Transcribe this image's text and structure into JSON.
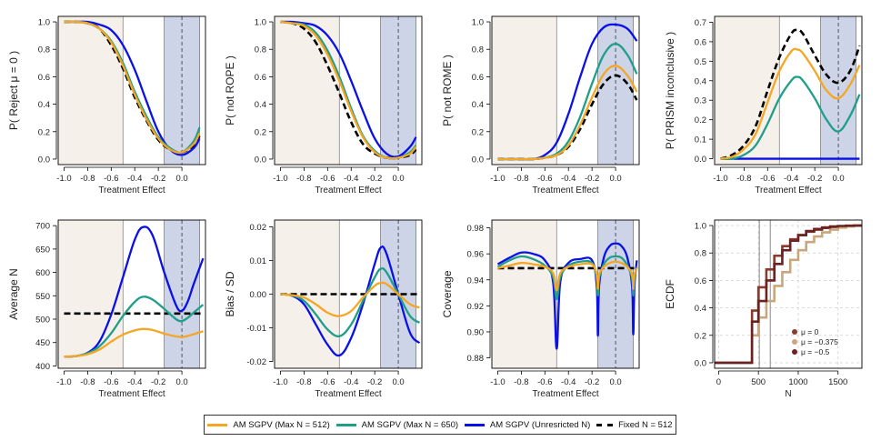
{
  "colors": {
    "am512": "#f5a623",
    "am650": "#1f9e89",
    "unres": "#0a10e8",
    "fixed": "#000000",
    "pre_region": "#f6f0ea",
    "rope_region": "#cdd4e8",
    "ecdf_mu0": "#8b3a2b",
    "ecdf_mu0375": "#c9a77c",
    "ecdf_mu05": "#6b2222"
  },
  "legend": {
    "items": [
      {
        "label": "AM SGPV (Max N = 512)",
        "color": "#f5a623",
        "style": "solid"
      },
      {
        "label": "AM SGPV (Max N = 650)",
        "color": "#1f9e89",
        "style": "solid"
      },
      {
        "label": "AM SGPV (Unresricted N)",
        "color": "#0a10e8",
        "style": "solid"
      },
      {
        "label": "Fixed N = 512",
        "color": "#000000",
        "style": "dashed"
      }
    ]
  },
  "chart_data": [
    {
      "type": "line",
      "ylabel": "P( Reject μ = 0 )",
      "xlabel": "Treatment Effect",
      "xlim": [
        -1.05,
        0.2
      ],
      "ylim": [
        -0.04,
        1.04
      ],
      "xticks": [
        "-1.0",
        "-0.8",
        "-0.6",
        "-0.4",
        "-0.2",
        "0.0"
      ],
      "yticks": [
        "0.0",
        "0.2",
        "0.4",
        "0.6",
        "0.8",
        "1.0"
      ],
      "x": [
        -1.0,
        -0.9,
        -0.8,
        -0.7,
        -0.6,
        -0.5,
        -0.4,
        -0.3,
        -0.2,
        -0.1,
        0.0,
        0.1,
        0.15
      ],
      "series": [
        {
          "name": "Fixed N = 512",
          "key": "fixed",
          "values": [
            1.0,
            1.0,
            0.99,
            0.95,
            0.83,
            0.66,
            0.45,
            0.28,
            0.14,
            0.07,
            0.05,
            0.1,
            0.17
          ]
        },
        {
          "name": "AM SGPV (Max N = 512)",
          "key": "am512",
          "values": [
            1.0,
            1.0,
            0.99,
            0.95,
            0.85,
            0.68,
            0.47,
            0.29,
            0.15,
            0.07,
            0.05,
            0.11,
            0.19
          ]
        },
        {
          "name": "AM SGPV (Max N = 650)",
          "key": "am650",
          "values": [
            1.0,
            1.0,
            0.99,
            0.95,
            0.86,
            0.7,
            0.49,
            0.31,
            0.16,
            0.08,
            0.05,
            0.13,
            0.23
          ]
        },
        {
          "name": "AM SGPV (Unresricted N)",
          "key": "unres",
          "values": [
            1.0,
            1.0,
            1.0,
            0.98,
            0.94,
            0.83,
            0.65,
            0.42,
            0.2,
            0.07,
            0.03,
            0.08,
            0.15
          ]
        }
      ]
    },
    {
      "type": "line",
      "ylabel": "P( not ROPE )",
      "xlabel": "Treatment Effect",
      "xlim": [
        -1.05,
        0.2
      ],
      "ylim": [
        -0.04,
        1.04
      ],
      "xticks": [
        "-1.0",
        "-0.8",
        "-0.6",
        "-0.4",
        "-0.2",
        "0.0"
      ],
      "yticks": [
        "0.0",
        "0.2",
        "0.4",
        "0.6",
        "0.8",
        "1.0"
      ],
      "x": [
        -1.0,
        -0.9,
        -0.8,
        -0.7,
        -0.6,
        -0.5,
        -0.4,
        -0.3,
        -0.2,
        -0.1,
        0.0,
        0.1,
        0.15
      ],
      "series": [
        {
          "name": "Fixed N = 512",
          "key": "fixed",
          "values": [
            1.0,
            0.99,
            0.95,
            0.85,
            0.68,
            0.48,
            0.27,
            0.11,
            0.04,
            0.01,
            0.01,
            0.03,
            0.07
          ]
        },
        {
          "name": "AM SGPV (Max N = 512)",
          "key": "am512",
          "values": [
            1.0,
            0.99,
            0.97,
            0.9,
            0.76,
            0.57,
            0.35,
            0.16,
            0.05,
            0.01,
            0.01,
            0.04,
            0.09
          ]
        },
        {
          "name": "AM SGPV (Max N = 650)",
          "key": "am650",
          "values": [
            1.0,
            0.99,
            0.98,
            0.92,
            0.79,
            0.6,
            0.37,
            0.17,
            0.06,
            0.01,
            0.01,
            0.05,
            0.1
          ]
        },
        {
          "name": "AM SGPV (Unresricted N)",
          "key": "unres",
          "values": [
            1.0,
            1.0,
            0.99,
            0.97,
            0.9,
            0.77,
            0.57,
            0.35,
            0.15,
            0.04,
            0.02,
            0.09,
            0.16
          ]
        }
      ]
    },
    {
      "type": "line",
      "ylabel": "P( not ROME )",
      "xlabel": "Treatment Effect",
      "xlim": [
        -1.05,
        0.2
      ],
      "ylim": [
        -0.04,
        1.04
      ],
      "xticks": [
        "-1.0",
        "-0.8",
        "-0.6",
        "-0.4",
        "-0.2",
        "0.0"
      ],
      "yticks": [
        "0.0",
        "0.2",
        "0.4",
        "0.6",
        "0.8",
        "1.0"
      ],
      "x": [
        -1.0,
        -0.9,
        -0.8,
        -0.7,
        -0.6,
        -0.5,
        -0.4,
        -0.3,
        -0.2,
        -0.1,
        0.0,
        0.1,
        0.18
      ],
      "series": [
        {
          "name": "Fixed N = 512",
          "key": "fixed",
          "values": [
            0.0,
            0.0,
            0.0,
            0.0,
            0.01,
            0.03,
            0.09,
            0.22,
            0.4,
            0.55,
            0.61,
            0.55,
            0.43
          ]
        },
        {
          "name": "AM SGPV (Max N = 512)",
          "key": "am512",
          "values": [
            0.0,
            0.0,
            0.0,
            0.0,
            0.01,
            0.03,
            0.1,
            0.25,
            0.45,
            0.62,
            0.68,
            0.61,
            0.49
          ]
        },
        {
          "name": "AM SGPV (Max N = 650)",
          "key": "am650",
          "values": [
            0.0,
            0.0,
            0.0,
            0.0,
            0.01,
            0.04,
            0.13,
            0.31,
            0.55,
            0.76,
            0.84,
            0.76,
            0.62
          ]
        },
        {
          "name": "AM SGPV (Unresricted N)",
          "key": "unres",
          "values": [
            0.0,
            0.0,
            0.0,
            0.0,
            0.03,
            0.12,
            0.33,
            0.6,
            0.84,
            0.96,
            0.98,
            0.95,
            0.86
          ]
        }
      ]
    },
    {
      "type": "line",
      "ylabel": "P( PRISM inconclusive )",
      "xlabel": "Treatment Effect",
      "xlim": [
        -1.05,
        0.2
      ],
      "ylim": [
        -0.03,
        0.73
      ],
      "xticks": [
        "-1.0",
        "-0.8",
        "-0.6",
        "-0.4",
        "-0.2",
        "0.0"
      ],
      "yticks": [
        "0.0",
        "0.1",
        "0.2",
        "0.3",
        "0.4",
        "0.5",
        "0.6",
        "0.7"
      ],
      "x": [
        -1.0,
        -0.9,
        -0.8,
        -0.7,
        -0.6,
        -0.5,
        -0.4,
        -0.35,
        -0.3,
        -0.2,
        -0.1,
        0.0,
        0.1,
        0.18
      ],
      "series": [
        {
          "name": "Fixed N = 512",
          "key": "fixed",
          "values": [
            0.0,
            0.02,
            0.07,
            0.17,
            0.35,
            0.52,
            0.64,
            0.66,
            0.64,
            0.53,
            0.43,
            0.39,
            0.45,
            0.58
          ]
        },
        {
          "name": "AM SGPV (Max N = 512)",
          "key": "am512",
          "values": [
            0.0,
            0.01,
            0.05,
            0.13,
            0.29,
            0.45,
            0.55,
            0.56,
            0.54,
            0.45,
            0.35,
            0.31,
            0.38,
            0.48
          ]
        },
        {
          "name": "AM SGPV (Max N = 650)",
          "key": "am650",
          "values": [
            0.0,
            0.0,
            0.02,
            0.07,
            0.18,
            0.31,
            0.4,
            0.42,
            0.4,
            0.31,
            0.2,
            0.14,
            0.22,
            0.33
          ]
        },
        {
          "name": "AM SGPV (Unresricted N)",
          "key": "unres",
          "values": [
            0.0,
            0.0,
            0.0,
            0.0,
            0.0,
            0.0,
            0.0,
            0.0,
            0.0,
            0.0,
            0.0,
            0.0,
            0.0,
            0.0
          ]
        }
      ]
    },
    {
      "type": "line",
      "ylabel": "Average N",
      "xlabel": "Treatment Effect",
      "xlim": [
        -1.05,
        0.2
      ],
      "ylim": [
        395,
        712
      ],
      "xticks": [
        "-1.0",
        "-0.8",
        "-0.6",
        "-0.4",
        "-0.2",
        "0.0"
      ],
      "yticks": [
        "400",
        "450",
        "500",
        "550",
        "600",
        "650",
        "700"
      ],
      "x": [
        -1.0,
        -0.9,
        -0.8,
        -0.7,
        -0.6,
        -0.5,
        -0.4,
        -0.33,
        -0.25,
        -0.15,
        -0.05,
        0.0,
        0.05,
        0.1,
        0.18
      ],
      "series": [
        {
          "name": "Fixed N = 512",
          "key": "fixed",
          "values": [
            512,
            512,
            512,
            512,
            512,
            512,
            512,
            512,
            512,
            512,
            512,
            512,
            512,
            512,
            512
          ]
        },
        {
          "name": "AM SGPV (Max N = 512)",
          "key": "am512",
          "values": [
            420,
            421,
            425,
            435,
            452,
            467,
            476,
            479,
            477,
            469,
            463,
            462,
            464,
            468,
            474
          ]
        },
        {
          "name": "AM SGPV (Max N = 650)",
          "key": "am650",
          "values": [
            420,
            421,
            427,
            442,
            470,
            507,
            537,
            548,
            542,
            522,
            500,
            496,
            503,
            514,
            531
          ]
        },
        {
          "name": "AM SGPV (Unresricted N)",
          "key": "unres",
          "values": [
            420,
            421,
            428,
            452,
            510,
            590,
            670,
            697,
            680,
            600,
            530,
            518,
            538,
            575,
            630
          ]
        }
      ]
    },
    {
      "type": "line",
      "ylabel": "Bias / SD",
      "xlabel": "Treatment Effect",
      "xlim": [
        -1.05,
        0.2
      ],
      "ylim": [
        -0.022,
        0.022
      ],
      "xticks": [
        "-1.0",
        "-0.8",
        "-0.6",
        "-0.4",
        "-0.2",
        "0.0"
      ],
      "yticks": [
        "-0.02",
        "-0.01",
        "0.00",
        "0.01",
        "0.02"
      ],
      "x": [
        -1.0,
        -0.9,
        -0.8,
        -0.7,
        -0.6,
        -0.5,
        -0.4,
        -0.3,
        -0.2,
        -0.15,
        -0.1,
        0.0,
        0.1,
        0.18
      ],
      "series": [
        {
          "name": "Fixed N = 512",
          "key": "fixed",
          "values": [
            0,
            0,
            0,
            0,
            0,
            0,
            0,
            0,
            0,
            0,
            0,
            0,
            0,
            0
          ]
        },
        {
          "name": "AM SGPV (Max N = 512)",
          "key": "am512",
          "values": [
            0,
            -0.0003,
            -0.001,
            -0.003,
            -0.0055,
            -0.0065,
            -0.005,
            -0.001,
            0.0025,
            0.0033,
            0.003,
            0.0,
            -0.003,
            -0.004
          ]
        },
        {
          "name": "AM SGPV (Max N = 650)",
          "key": "am650",
          "values": [
            0,
            -0.0004,
            -0.002,
            -0.006,
            -0.0105,
            -0.0125,
            -0.009,
            -0.002,
            0.005,
            0.0075,
            0.0065,
            0.0,
            -0.0065,
            -0.0085
          ]
        },
        {
          "name": "AM SGPV (Unresricted N)",
          "key": "unres",
          "values": [
            0,
            -0.0005,
            -0.003,
            -0.009,
            -0.015,
            -0.0182,
            -0.013,
            -0.003,
            0.009,
            0.0138,
            0.012,
            0.0,
            -0.0115,
            -0.0145
          ]
        }
      ]
    },
    {
      "type": "line",
      "ylabel": "Coverage",
      "xlabel": "Treatment Effect",
      "xlim": [
        -1.05,
        0.2
      ],
      "ylim": [
        0.872,
        0.986
      ],
      "xticks": [
        "-1.0",
        "-0.8",
        "-0.6",
        "-0.4",
        "-0.2",
        "0.0"
      ],
      "yticks": [
        "0.88",
        "0.90",
        "0.92",
        "0.94",
        "0.96",
        "0.98"
      ],
      "x": [
        -1.0,
        -0.9,
        -0.8,
        -0.7,
        -0.6,
        -0.53,
        -0.5,
        -0.47,
        -0.4,
        -0.3,
        -0.2,
        -0.16,
        -0.15,
        -0.14,
        -0.1,
        -0.05,
        0.0,
        0.05,
        0.1,
        0.14,
        0.15,
        0.16,
        0.18
      ],
      "series": [
        {
          "name": "Fixed N = 512",
          "key": "fixed",
          "values": [
            0.949,
            0.949,
            0.949,
            0.949,
            0.949,
            0.949,
            0.949,
            0.949,
            0.949,
            0.949,
            0.949,
            0.949,
            0.949,
            0.949,
            0.949,
            0.949,
            0.949,
            0.949,
            0.949,
            0.949,
            0.949,
            0.949,
            0.949
          ]
        },
        {
          "name": "AM SGPV (Max N = 512)",
          "key": "am512",
          "values": [
            0.949,
            0.951,
            0.953,
            0.952,
            0.95,
            0.945,
            0.932,
            0.945,
            0.95,
            0.952,
            0.952,
            0.944,
            0.933,
            0.944,
            0.95,
            0.953,
            0.954,
            0.953,
            0.95,
            0.944,
            0.933,
            0.944,
            0.949
          ]
        },
        {
          "name": "AM SGPV (Max N = 650)",
          "key": "am650",
          "values": [
            0.95,
            0.955,
            0.958,
            0.956,
            0.951,
            0.942,
            0.925,
            0.942,
            0.951,
            0.954,
            0.953,
            0.941,
            0.928,
            0.941,
            0.952,
            0.957,
            0.958,
            0.957,
            0.951,
            0.941,
            0.928,
            0.941,
            0.95
          ]
        },
        {
          "name": "AM SGPV (Unresricted N)",
          "key": "unres",
          "values": [
            0.952,
            0.957,
            0.961,
            0.96,
            0.955,
            0.938,
            0.887,
            0.938,
            0.953,
            0.956,
            0.955,
            0.935,
            0.897,
            0.935,
            0.957,
            0.966,
            0.968,
            0.966,
            0.957,
            0.935,
            0.898,
            0.935,
            0.955
          ]
        }
      ]
    },
    {
      "type": "line",
      "ylabel": "ECDF",
      "xlabel": "N",
      "xlim": [
        -50,
        1800
      ],
      "ylim": [
        -0.04,
        1.04
      ],
      "xticks": [
        "0",
        "500",
        "1000",
        "1500"
      ],
      "xtick_values": [
        0,
        500,
        1000,
        1500
      ],
      "yticks": [
        "0.0",
        "0.2",
        "0.4",
        "0.6",
        "0.8",
        "1.0"
      ],
      "legend_position": "bottom-right",
      "series": [
        {
          "name": "μ = 0",
          "key": "ecdf_mu0",
          "x": [
            -50,
            420,
            420,
            500,
            600,
            700,
            800,
            900,
            1000,
            1100,
            1200,
            1300,
            1400,
            1500,
            1600,
            1700,
            1800
          ],
          "values": [
            0,
            0,
            0.38,
            0.55,
            0.68,
            0.78,
            0.85,
            0.9,
            0.93,
            0.955,
            0.97,
            0.982,
            0.99,
            0.995,
            0.998,
            1.0,
            1.0
          ]
        },
        {
          "name": "μ = −0.375",
          "key": "ecdf_mu0375",
          "x": [
            -50,
            420,
            420,
            500,
            600,
            700,
            800,
            900,
            1000,
            1100,
            1200,
            1300,
            1400,
            1500,
            1600,
            1700,
            1800
          ],
          "values": [
            0,
            0,
            0.2,
            0.33,
            0.45,
            0.56,
            0.66,
            0.75,
            0.82,
            0.88,
            0.92,
            0.95,
            0.97,
            0.985,
            0.993,
            0.998,
            1.0
          ]
        },
        {
          "name": "μ = −0.5",
          "key": "ecdf_mu05",
          "x": [
            -50,
            420,
            420,
            500,
            600,
            700,
            800,
            900,
            1000,
            1100,
            1200,
            1300,
            1400,
            1500,
            1600,
            1700,
            1800
          ],
          "values": [
            0,
            0,
            0.3,
            0.45,
            0.6,
            0.72,
            0.82,
            0.89,
            0.93,
            0.96,
            0.975,
            0.986,
            0.993,
            0.997,
            0.999,
            1.0,
            1.0
          ]
        }
      ]
    }
  ]
}
